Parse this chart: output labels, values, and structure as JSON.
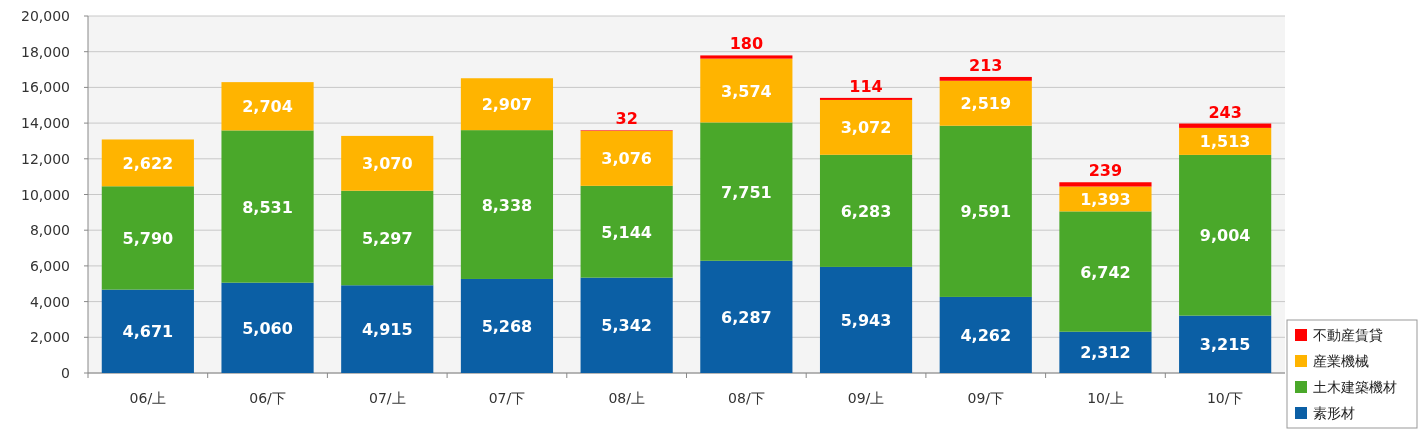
{
  "chart_data": {
    "type": "bar",
    "stacked": true,
    "grid": "y",
    "legend": "bottom right",
    "categories": [
      "06/上",
      "06/下",
      "07/上",
      "07/下",
      "08/上",
      "08/下",
      "09/上",
      "09/下",
      "10/上",
      "10/下"
    ],
    "series": [
      {
        "name": "素形材",
        "color": "#0b5fa5",
        "values": [
          4671,
          5060,
          4915,
          5268,
          5342,
          6287,
          5943,
          4262,
          2312,
          3215
        ],
        "value_labels": [
          "4,671",
          "5,060",
          "4,915",
          "5,268",
          "5,342",
          "6,287",
          "5,943",
          "4,262",
          "2,312",
          "3,215"
        ]
      },
      {
        "name": "土木建築機材",
        "color": "#4aa82a",
        "values": [
          5790,
          8531,
          5297,
          8338,
          5144,
          7751,
          6283,
          9591,
          6742,
          9004
        ],
        "value_labels": [
          "5,790",
          "8,531",
          "5,297",
          "8,338",
          "5,144",
          "7,751",
          "6,283",
          "9,591",
          "6,742",
          "9,004"
        ]
      },
      {
        "name": "産業機械",
        "color": "#ffb400",
        "values": [
          2622,
          2704,
          3070,
          2907,
          3076,
          3574,
          3072,
          2519,
          1393,
          1513
        ],
        "value_labels": [
          "2,622",
          "2,704",
          "3,070",
          "2,907",
          "3,076",
          "3,574",
          "3,072",
          "2,519",
          "1,393",
          "1,513"
        ]
      },
      {
        "name": "不動産賃貸",
        "color": "#ff0000",
        "values": [
          null,
          null,
          null,
          null,
          32,
          180,
          114,
          213,
          239,
          243
        ],
        "value_labels": [
          null,
          null,
          null,
          null,
          "32",
          "180",
          "114",
          "213",
          "239",
          "243"
        ]
      }
    ],
    "ylim": [
      0,
      20000
    ],
    "yticks": [
      0,
      {
        "value": 2000,
        "label": "2,000"
      },
      {
        "value": 4000,
        "label": "4,000"
      },
      {
        "value": 6000,
        "label": "6,000"
      },
      {
        "value": 8000,
        "label": "8,000"
      },
      {
        "value": 10000,
        "label": "10,000"
      },
      {
        "value": 12000,
        "label": "12,000"
      },
      {
        "value": 14000,
        "label": "14,000"
      },
      {
        "value": 16000,
        "label": "16,000"
      },
      {
        "value": 18000,
        "label": "18,000"
      },
      {
        "value": 20000,
        "label": "20,000"
      }
    ]
  }
}
